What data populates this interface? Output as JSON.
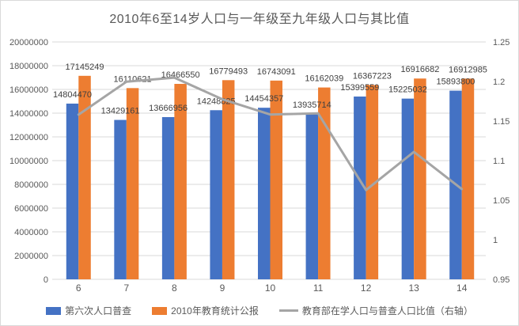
{
  "chart_data": {
    "type": "bar",
    "title": "2010年6至14岁人口与一年级至九年级人口与其比值",
    "categories": [
      "6",
      "7",
      "8",
      "9",
      "10",
      "11",
      "12",
      "13",
      "14"
    ],
    "series": [
      {
        "name": "第六次人口普查",
        "type": "bar",
        "axis": "left",
        "color": "#4472C4",
        "values": [
          14804470,
          13429161,
          13666956,
          14248825,
          14454357,
          13935714,
          15399559,
          15225032,
          15893800
        ],
        "data_labels": true
      },
      {
        "name": "2010年教育统计公报",
        "type": "bar",
        "axis": "left",
        "color": "#ED7D31",
        "values": [
          17145249,
          16110621,
          16466550,
          16779493,
          16743091,
          16162039,
          16367223,
          16916682,
          16912985
        ],
        "data_labels": true
      },
      {
        "name": "教育部在学人口与普查人口比值（右轴）",
        "type": "line",
        "axis": "right",
        "color": "#A5A5A5",
        "values": [
          1.1581,
          1.1997,
          1.2049,
          1.1776,
          1.1583,
          1.1598,
          1.0628,
          1.1111,
          1.0641
        ],
        "data_labels": false
      }
    ],
    "left_axis": {
      "min": 0,
      "max": 20000000,
      "step": 2000000,
      "tick_labels": [
        "0",
        "2000000",
        "4000000",
        "6000000",
        "8000000",
        "10000000",
        "12000000",
        "14000000",
        "16000000",
        "18000000",
        "20000000"
      ]
    },
    "right_axis": {
      "min": 0.95,
      "max": 1.25,
      "step": 0.05,
      "tick_labels": [
        "0.95",
        "1",
        "1.05",
        "1.1",
        "1.15",
        "1.2",
        "1.25"
      ]
    },
    "grid": true,
    "legend_position": "bottom"
  },
  "colors": {
    "grid": "#D9D9D9",
    "axis_text": "#595959",
    "data_label_text": "#404040",
    "bar_blue": "#4472C4",
    "bar_orange": "#ED7D31",
    "ratio_line": "#A5A5A5",
    "border": "#D9D9D9"
  }
}
